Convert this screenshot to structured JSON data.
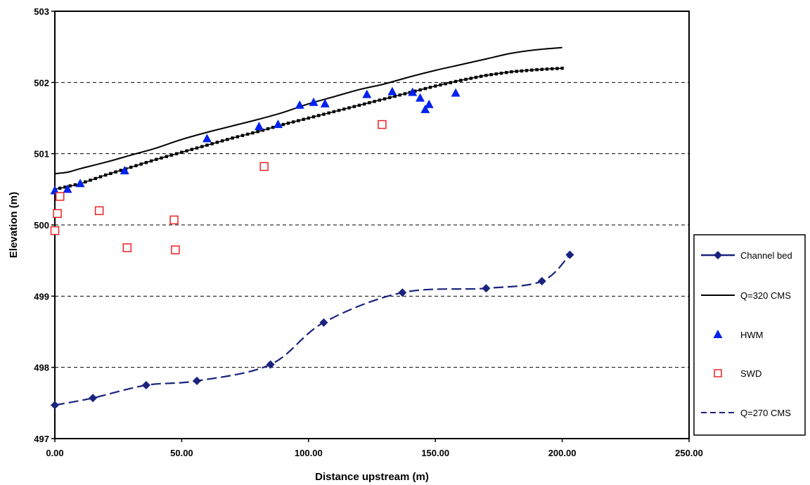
{
  "chart_data": {
    "type": "scatter",
    "title": "",
    "xlabel": "Distance upstream (m)",
    "ylabel": "Elevation (m)",
    "xlim": [
      0,
      250
    ],
    "ylim": [
      497,
      503
    ],
    "x_ticks": [
      0,
      50,
      100,
      150,
      200,
      250
    ],
    "x_tick_labels": [
      "0.00",
      "50.00",
      "100.00",
      "150.00",
      "200.00",
      "250.00"
    ],
    "y_ticks": [
      497,
      498,
      499,
      500,
      501,
      502,
      503
    ],
    "y_tick_labels": [
      "497",
      "498",
      "499",
      "500",
      "501",
      "502",
      "503"
    ],
    "grid": "horizontal dashed",
    "legend_position": "right",
    "series": [
      {
        "name": "Channel bed",
        "style": "dashed line with diamond markers",
        "color": "#1a237e",
        "x": [
          0,
          15,
          36,
          56,
          85,
          106,
          137,
          170,
          192,
          203
        ],
        "y": [
          497.47,
          497.57,
          497.75,
          497.81,
          498.04,
          498.63,
          499.05,
          499.11,
          499.21,
          499.58
        ]
      },
      {
        "name": "Q=320 CMS",
        "style": "solid line",
        "color": "#000000",
        "x": [
          0,
          5,
          10,
          20,
          30,
          40,
          50,
          60,
          70,
          80,
          90,
          100,
          110,
          120,
          130,
          140,
          150,
          160,
          170,
          180,
          190,
          200
        ],
        "y": [
          500.72,
          500.74,
          500.79,
          500.88,
          500.98,
          501.08,
          501.2,
          501.3,
          501.39,
          501.48,
          501.58,
          501.7,
          501.8,
          501.9,
          501.98,
          502.08,
          502.17,
          502.25,
          502.33,
          502.41,
          502.46,
          502.49
        ]
      },
      {
        "name": "HWM",
        "style": "triangle markers",
        "color": "#0022ee",
        "x": [
          0,
          5,
          10,
          27.5,
          60,
          80.5,
          88,
          96.5,
          102,
          106.5,
          123,
          133,
          141,
          144,
          146,
          147.5,
          158
        ],
        "y": [
          500.48,
          500.5,
          500.58,
          500.76,
          501.21,
          501.38,
          501.41,
          501.68,
          501.72,
          501.7,
          501.83,
          501.87,
          501.86,
          501.78,
          501.62,
          501.69,
          501.85
        ]
      },
      {
        "name": "SWD",
        "style": "open square markers",
        "color": "#ee2222",
        "x": [
          0,
          1,
          2,
          17.5,
          28.5,
          47,
          47.5,
          82.5,
          129
        ],
        "y": [
          499.92,
          500.16,
          500.4,
          500.2,
          499.68,
          500.07,
          499.65,
          500.82,
          501.41
        ]
      },
      {
        "name": "Q=270 CMS",
        "style": "line with small square markers",
        "color": "#000000",
        "x": [
          0,
          10,
          20,
          30,
          40,
          50,
          60,
          70,
          80,
          90,
          100,
          110,
          120,
          130,
          140,
          150,
          160,
          170,
          180,
          190,
          200
        ],
        "y": [
          500.5,
          500.58,
          500.7,
          500.81,
          500.92,
          501.02,
          501.12,
          501.22,
          501.31,
          501.41,
          501.5,
          501.59,
          501.68,
          501.77,
          501.86,
          501.95,
          502.03,
          502.1,
          502.15,
          502.18,
          502.2
        ]
      }
    ]
  }
}
